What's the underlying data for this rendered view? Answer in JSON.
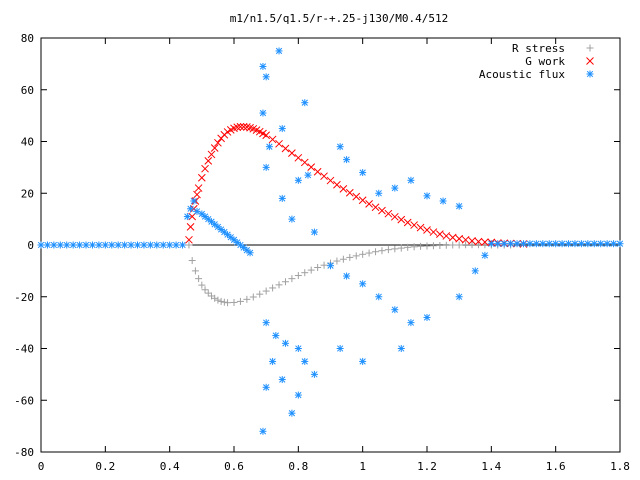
{
  "chart_data": {
    "type": "scatter",
    "title": "m1/n1.5/q1.5/r-+.25-j130/M0.4/512",
    "xlabel": "",
    "ylabel": "",
    "xlim": [
      0,
      1.8
    ],
    "ylim": [
      -80,
      80
    ],
    "xticks": [
      0,
      0.2,
      0.4,
      0.6,
      0.8,
      1,
      1.2,
      1.4,
      1.6,
      1.8
    ],
    "xtick_labels": [
      "0",
      "0.2",
      "0.4",
      "0.6",
      "0.8",
      "1",
      "1.2",
      "1.4",
      "1.6",
      "1.8"
    ],
    "yticks": [
      -80,
      -60,
      -40,
      -20,
      0,
      20,
      40,
      60,
      80
    ],
    "ytick_labels": [
      "-80",
      "-60",
      "-40",
      "-20",
      "0",
      "20",
      "40",
      "60",
      "80"
    ],
    "grid": false,
    "legend_position": "top-right",
    "series": [
      {
        "name": "R stress",
        "marker": "plus",
        "color": "#a0a0a0",
        "points": [
          [
            0.46,
            0
          ],
          [
            0.47,
            -6
          ],
          [
            0.48,
            -10
          ],
          [
            0.49,
            -13
          ],
          [
            0.5,
            -15.5
          ],
          [
            0.51,
            -17.3
          ],
          [
            0.52,
            -18.6
          ],
          [
            0.53,
            -19.7
          ],
          [
            0.54,
            -20.6
          ],
          [
            0.55,
            -21.3
          ],
          [
            0.56,
            -21.8
          ],
          [
            0.57,
            -22.1
          ],
          [
            0.58,
            -22.3
          ],
          [
            0.6,
            -22.2
          ],
          [
            0.62,
            -21.8
          ],
          [
            0.64,
            -21
          ],
          [
            0.66,
            -20.1
          ],
          [
            0.68,
            -19
          ],
          [
            0.7,
            -17.8
          ],
          [
            0.72,
            -16.6
          ],
          [
            0.74,
            -15.4
          ],
          [
            0.76,
            -14.2
          ],
          [
            0.78,
            -13
          ],
          [
            0.8,
            -11.8
          ],
          [
            0.82,
            -10.7
          ],
          [
            0.84,
            -9.7
          ],
          [
            0.86,
            -8.7
          ],
          [
            0.88,
            -7.8
          ],
          [
            0.9,
            -7
          ],
          [
            0.92,
            -6.2
          ],
          [
            0.94,
            -5.5
          ],
          [
            0.96,
            -4.8
          ],
          [
            0.98,
            -4.2
          ],
          [
            1.0,
            -3.6
          ],
          [
            1.02,
            -3.1
          ],
          [
            1.04,
            -2.6
          ],
          [
            1.06,
            -2.2
          ],
          [
            1.08,
            -1.8
          ],
          [
            1.1,
            -1.5
          ],
          [
            1.12,
            -1.2
          ],
          [
            1.14,
            -0.9
          ],
          [
            1.16,
            -0.7
          ],
          [
            1.18,
            -0.5
          ],
          [
            1.2,
            -0.4
          ],
          [
            1.22,
            -0.3
          ],
          [
            1.24,
            -0.2
          ],
          [
            1.26,
            -0.1
          ],
          [
            1.28,
            0
          ],
          [
            1.3,
            0
          ],
          [
            1.32,
            0.1
          ],
          [
            1.34,
            0.1
          ],
          [
            1.36,
            0.1
          ],
          [
            1.38,
            0.1
          ],
          [
            1.4,
            0
          ],
          [
            1.42,
            0
          ],
          [
            1.44,
            0
          ],
          [
            1.46,
            0
          ]
        ]
      },
      {
        "name": "G work",
        "marker": "cross",
        "color": "#ff0000",
        "points": [
          [
            0.46,
            2
          ],
          [
            0.465,
            7
          ],
          [
            0.47,
            11
          ],
          [
            0.475,
            14
          ],
          [
            0.48,
            17
          ],
          [
            0.485,
            19.5
          ],
          [
            0.49,
            22
          ],
          [
            0.5,
            26
          ],
          [
            0.51,
            29.5
          ],
          [
            0.52,
            32.5
          ],
          [
            0.53,
            35
          ],
          [
            0.54,
            37.5
          ],
          [
            0.55,
            39.5
          ],
          [
            0.56,
            41.2
          ],
          [
            0.57,
            42.6
          ],
          [
            0.58,
            43.7
          ],
          [
            0.59,
            44.5
          ],
          [
            0.6,
            45.1
          ],
          [
            0.61,
            45.5
          ],
          [
            0.62,
            45.7
          ],
          [
            0.63,
            45.7
          ],
          [
            0.64,
            45.6
          ],
          [
            0.65,
            45.3
          ],
          [
            0.66,
            44.9
          ],
          [
            0.67,
            44.4
          ],
          [
            0.68,
            43.8
          ],
          [
            0.69,
            43.1
          ],
          [
            0.7,
            42.4
          ],
          [
            0.72,
            40.8
          ],
          [
            0.74,
            39.1
          ],
          [
            0.76,
            37.3
          ],
          [
            0.78,
            35.5
          ],
          [
            0.8,
            33.7
          ],
          [
            0.82,
            31.9
          ],
          [
            0.84,
            30.1
          ],
          [
            0.86,
            28.3
          ],
          [
            0.88,
            26.6
          ],
          [
            0.9,
            24.9
          ],
          [
            0.92,
            23.3
          ],
          [
            0.94,
            21.7
          ],
          [
            0.96,
            20.2
          ],
          [
            0.98,
            18.7
          ],
          [
            1.0,
            17.3
          ],
          [
            1.02,
            15.9
          ],
          [
            1.04,
            14.6
          ],
          [
            1.06,
            13.3
          ],
          [
            1.08,
            12.1
          ],
          [
            1.1,
            10.9
          ],
          [
            1.12,
            9.8
          ],
          [
            1.14,
            8.7
          ],
          [
            1.16,
            7.7
          ],
          [
            1.18,
            6.7
          ],
          [
            1.2,
            5.8
          ],
          [
            1.22,
            5
          ],
          [
            1.24,
            4.2
          ],
          [
            1.26,
            3.5
          ],
          [
            1.28,
            2.9
          ],
          [
            1.3,
            2.4
          ],
          [
            1.32,
            2
          ],
          [
            1.34,
            1.6
          ],
          [
            1.36,
            1.3
          ],
          [
            1.38,
            1.1
          ],
          [
            1.4,
            1
          ],
          [
            1.42,
            0.8
          ],
          [
            1.44,
            0.7
          ],
          [
            1.46,
            0.6
          ],
          [
            1.48,
            0.5
          ],
          [
            1.5,
            0.4
          ]
        ]
      },
      {
        "name": "Acoustic flux",
        "marker": "star",
        "color": "#1e90ff",
        "points": [
          [
            0.0,
            0
          ],
          [
            0.02,
            0
          ],
          [
            0.04,
            0
          ],
          [
            0.06,
            0
          ],
          [
            0.08,
            0
          ],
          [
            0.1,
            0
          ],
          [
            0.12,
            0
          ],
          [
            0.14,
            0
          ],
          [
            0.16,
            0
          ],
          [
            0.18,
            0
          ],
          [
            0.2,
            0
          ],
          [
            0.22,
            0
          ],
          [
            0.24,
            0
          ],
          [
            0.26,
            0
          ],
          [
            0.28,
            0
          ],
          [
            0.3,
            0
          ],
          [
            0.32,
            0
          ],
          [
            0.34,
            0
          ],
          [
            0.36,
            0
          ],
          [
            0.38,
            0
          ],
          [
            0.4,
            0
          ],
          [
            0.42,
            0
          ],
          [
            0.44,
            0
          ],
          [
            0.455,
            11
          ],
          [
            0.465,
            14
          ],
          [
            0.475,
            17
          ],
          [
            0.485,
            13
          ],
          [
            0.5,
            12
          ],
          [
            0.51,
            11
          ],
          [
            0.52,
            10
          ],
          [
            0.53,
            9
          ],
          [
            0.54,
            8
          ],
          [
            0.55,
            7
          ],
          [
            0.56,
            6
          ],
          [
            0.57,
            5
          ],
          [
            0.58,
            4
          ],
          [
            0.59,
            3
          ],
          [
            0.6,
            2
          ],
          [
            0.61,
            1
          ],
          [
            0.62,
            0
          ],
          [
            0.63,
            -1
          ],
          [
            0.64,
            -2
          ],
          [
            0.65,
            -3
          ],
          [
            0.69,
            69
          ],
          [
            0.7,
            65
          ],
          [
            0.74,
            75
          ],
          [
            0.82,
            55
          ],
          [
            0.69,
            51
          ],
          [
            0.75,
            45
          ],
          [
            0.71,
            38
          ],
          [
            0.7,
            30
          ],
          [
            0.83,
            27
          ],
          [
            0.8,
            25
          ],
          [
            0.93,
            38
          ],
          [
            0.95,
            33
          ],
          [
            1.0,
            28
          ],
          [
            1.05,
            20
          ],
          [
            1.1,
            22
          ],
          [
            1.15,
            25
          ],
          [
            1.2,
            19
          ],
          [
            1.25,
            17
          ],
          [
            1.3,
            15
          ],
          [
            0.75,
            18
          ],
          [
            0.78,
            10
          ],
          [
            0.85,
            5
          ],
          [
            0.9,
            -8
          ],
          [
            0.95,
            -12
          ],
          [
            1.0,
            -15
          ],
          [
            1.05,
            -20
          ],
          [
            1.1,
            -25
          ],
          [
            1.15,
            -30
          ],
          [
            1.2,
            -28
          ],
          [
            0.7,
            -30
          ],
          [
            0.73,
            -35
          ],
          [
            0.76,
            -38
          ],
          [
            0.8,
            -40
          ],
          [
            0.82,
            -45
          ],
          [
            0.85,
            -50
          ],
          [
            0.72,
            -45
          ],
          [
            0.7,
            -55
          ],
          [
            0.75,
            -52
          ],
          [
            0.69,
            -72
          ],
          [
            0.78,
            -65
          ],
          [
            0.8,
            -58
          ],
          [
            0.93,
            -40
          ],
          [
            1.0,
            -45
          ],
          [
            1.12,
            -40
          ],
          [
            1.3,
            -20
          ],
          [
            1.35,
            -10
          ],
          [
            1.38,
            -4
          ],
          [
            1.4,
            0.5
          ],
          [
            1.42,
            0.5
          ],
          [
            1.44,
            0.5
          ],
          [
            1.46,
            0.5
          ],
          [
            1.48,
            0.5
          ],
          [
            1.5,
            0.5
          ],
          [
            1.52,
            0.5
          ],
          [
            1.54,
            0.5
          ],
          [
            1.56,
            0.5
          ],
          [
            1.58,
            0.5
          ],
          [
            1.6,
            0.5
          ],
          [
            1.62,
            0.5
          ],
          [
            1.64,
            0.5
          ],
          [
            1.66,
            0.5
          ],
          [
            1.68,
            0.5
          ],
          [
            1.7,
            0.5
          ],
          [
            1.72,
            0.5
          ],
          [
            1.74,
            0.5
          ],
          [
            1.76,
            0.5
          ],
          [
            1.78,
            0.5
          ],
          [
            1.8,
            0.5
          ]
        ]
      }
    ]
  }
}
